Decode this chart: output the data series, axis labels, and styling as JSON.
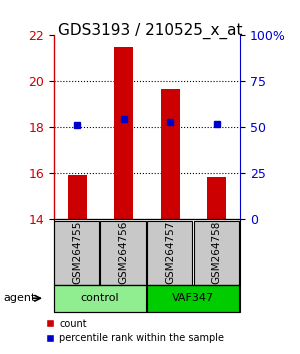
{
  "title": "GDS3193 / 210525_x_at",
  "samples": [
    "GSM264755",
    "GSM264756",
    "GSM264757",
    "GSM264758"
  ],
  "groups": [
    "control",
    "control",
    "VAF347",
    "VAF347"
  ],
  "group_labels": [
    "control",
    "VAF347"
  ],
  "group_colors": [
    "#90EE90",
    "#00CC00"
  ],
  "count_values": [
    15.95,
    21.5,
    19.65,
    15.85
  ],
  "percentile_values": [
    18.1,
    18.35,
    18.25,
    18.15
  ],
  "percentile_pct": [
    50,
    52,
    52,
    50
  ],
  "ylim_left": [
    14,
    22
  ],
  "ylim_right": [
    0,
    100
  ],
  "yticks_left": [
    14,
    16,
    18,
    20,
    22
  ],
  "yticks_right": [
    0,
    25,
    50,
    75,
    100
  ],
  "ytick_right_labels": [
    "0",
    "25",
    "50",
    "75",
    "100%"
  ],
  "bar_color": "#CC0000",
  "dot_color": "#0000CC",
  "bar_width": 0.4,
  "background_color": "#ffffff",
  "plot_bg_color": "#ffffff",
  "grid_color": "#000000",
  "title_fontsize": 11,
  "tick_fontsize": 9,
  "label_fontsize": 9,
  "legend_count_label": "count",
  "legend_pct_label": "percentile rank within the sample"
}
